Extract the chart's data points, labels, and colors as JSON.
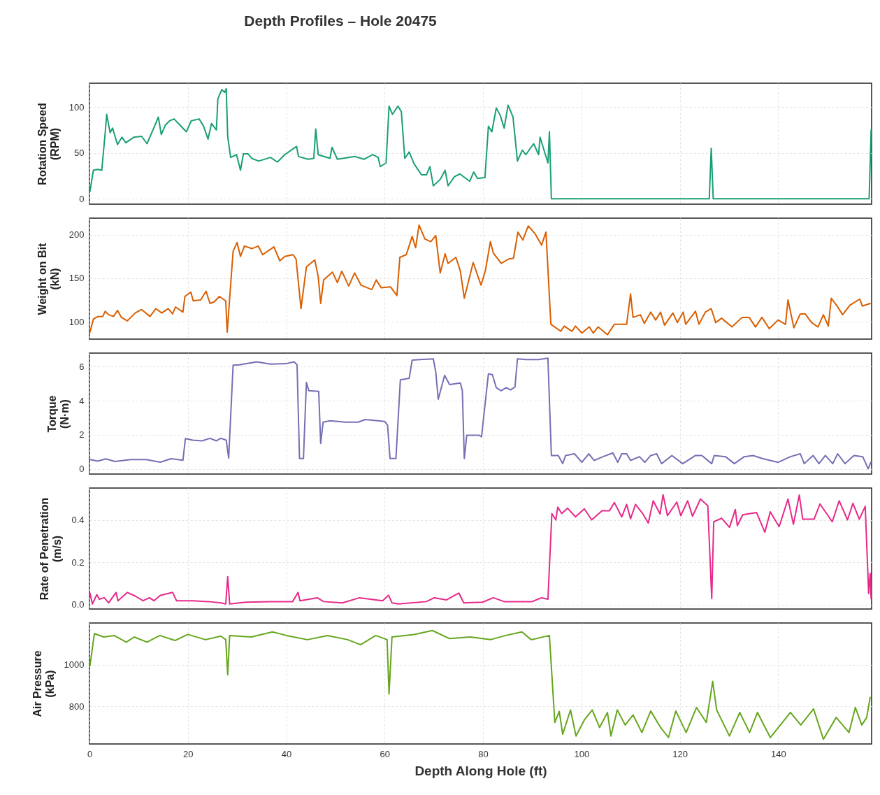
{
  "chart_data": [
    {
      "type": "line",
      "title": "Depth Profiles – Hole 20475",
      "ylabel": "Rotation Speed (RPM)",
      "xlim": [
        0,
        159
      ],
      "xticks": [
        0,
        20,
        40,
        60,
        80,
        100,
        120,
        140
      ],
      "ylim": [
        -6,
        126
      ],
      "yticks": [
        0,
        50,
        100
      ],
      "grid": true,
      "tick_labels": "y",
      "series": [
        {
          "color": "#1b9e77",
          "x": [
            0.1,
            0.8,
            1.7,
            2.5,
            3.2,
            3.5,
            4.2,
            4.7,
            5.7,
            6.6,
            7.4,
            9,
            10.6,
            11.7,
            12.9,
            14,
            14.6,
            15.4,
            16.3,
            17.2,
            19.7,
            20.7,
            22.3,
            23.2,
            24.1,
            24.8,
            25.8,
            26.1,
            26.9,
            27.5,
            27.8,
            28.1,
            28.7,
            29.9,
            30.7,
            31.3,
            32.2,
            33,
            34.4,
            36.8,
            38.2,
            39.7,
            42.1,
            42.5,
            44.4,
            45.6,
            46,
            46.5,
            48.9,
            49.3,
            50.4,
            54,
            55.8,
            57.6,
            58.7,
            59.1,
            60.3,
            60.9,
            61.6,
            62.7,
            63.4,
            64.1,
            65,
            66,
            67.5,
            68.5,
            69.2,
            69.9,
            71.3,
            72.3,
            72.9,
            74.2,
            75.3,
            77.3,
            78.1,
            78.9,
            80.4,
            81.1,
            81.8,
            82.7,
            83.5,
            84.3,
            85.1,
            86.1,
            87,
            88,
            88.7,
            90.3,
            91.3,
            91.6,
            93.2,
            93.5,
            93.9,
            126,
            126.4,
            126.8,
            158.5,
            158.9
          ],
          "values": [
            8,
            31,
            32,
            31,
            72,
            92,
            72,
            77,
            59,
            67,
            61,
            67,
            68,
            60,
            75,
            89,
            70,
            80,
            85,
            87,
            73,
            85,
            87,
            79,
            65,
            82,
            75,
            109,
            119,
            116,
            120,
            68,
            45,
            48,
            31,
            49,
            49,
            44,
            41,
            45,
            40,
            48,
            57,
            46,
            43,
            44,
            76,
            48,
            44,
            56,
            43,
            46,
            43,
            48,
            45,
            35,
            39,
            101,
            92,
            101,
            95,
            44,
            51,
            38,
            26,
            26,
            35,
            14,
            21,
            31,
            14,
            24,
            27,
            19,
            29,
            22,
            23,
            79,
            73,
            99,
            91,
            77,
            102,
            89,
            41,
            53,
            48,
            60,
            48,
            67,
            39,
            73,
            0,
            0,
            55,
            0,
            0,
            75
          ]
        }
      ]
    },
    {
      "type": "line",
      "ylabel": "Weight on Bit (kN)",
      "xlim": [
        0,
        159
      ],
      "xticks": [
        0,
        20,
        40,
        60,
        80,
        100,
        120,
        140
      ],
      "ylim": [
        80,
        219
      ],
      "yticks": [
        100,
        150,
        200
      ],
      "grid": true,
      "tick_labels": "y",
      "series": [
        {
          "color": "#d95f02",
          "x": [
            0.1,
            0.8,
            1.7,
            2.7,
            3.2,
            3.9,
            4.9,
            5.7,
            6.5,
            7.7,
            9.3,
            10.6,
            12.3,
            13.5,
            14.7,
            16,
            16.9,
            17.5,
            19,
            19.4,
            20.6,
            21.1,
            22.6,
            23.7,
            24.5,
            25.4,
            26.4,
            27.7,
            28,
            29.2,
            30,
            30.7,
            31.5,
            33,
            34.3,
            35.2,
            37.5,
            38.7,
            39.7,
            41.4,
            42,
            43,
            44.1,
            45.8,
            46.5,
            47,
            47.6,
            49.4,
            50.4,
            51.3,
            52.7,
            53.9,
            55.2,
            57.4,
            58.3,
            59.3,
            61.2,
            62.5,
            63.1,
            64.4,
            65.6,
            66.3,
            67,
            68.2,
            69.4,
            70.4,
            71.3,
            72.3,
            72.9,
            74.5,
            75.4,
            76.2,
            78,
            79.6,
            80.5,
            81.5,
            82.1,
            83.7,
            85.2,
            86.2,
            87.1,
            88.1,
            89.2,
            90.6,
            91.9,
            92.8,
            93.8,
            95.8,
            96.5,
            98.1,
            98.8,
            100.1,
            101.6,
            102.4,
            103.4,
            105.3,
            106.7,
            108,
            109.2,
            110,
            110.5,
            112,
            112.8,
            114.1,
            115.1,
            116.1,
            116.9,
            118.6,
            119.5,
            120.7,
            121.2,
            123.2,
            123.9,
            125.2,
            126.4,
            127.3,
            128.5,
            130.6,
            132.7,
            134.1,
            135.4,
            136.7,
            138.2,
            140,
            141.5,
            142,
            143.2,
            144.5,
            145.5,
            146.8,
            148.1,
            149.2,
            150.2,
            150.8,
            152.1,
            153.1,
            154.6,
            156.6,
            157.1,
            158.7
          ],
          "values": [
            88,
            103,
            106,
            106,
            112,
            108,
            106,
            113,
            105,
            101,
            110,
            114,
            106,
            115,
            110,
            115,
            109,
            117,
            111,
            129,
            134,
            124,
            125,
            135,
            121,
            123,
            129,
            124,
            88,
            181,
            191,
            175,
            187,
            184,
            187,
            177,
            186,
            170,
            175,
            177,
            172,
            115,
            163,
            171,
            152,
            121,
            148,
            157,
            145,
            158,
            141,
            156,
            142,
            137,
            148,
            139,
            140,
            130,
            174,
            177,
            198,
            185,
            211,
            195,
            192,
            199,
            156,
            178,
            167,
            174,
            158,
            127,
            168,
            142,
            159,
            192,
            179,
            167,
            172,
            173,
            203,
            194,
            210,
            201,
            188,
            203,
            97,
            89,
            95,
            89,
            95,
            87,
            94,
            87,
            94,
            85,
            97,
            97,
            97,
            132,
            105,
            108,
            98,
            111,
            102,
            111,
            96,
            110,
            99,
            111,
            97,
            112,
            97,
            111,
            115,
            99,
            104,
            94,
            105,
            105,
            94,
            105,
            92,
            102,
            97,
            125,
            93,
            109,
            109,
            99,
            94,
            108,
            95,
            127,
            117,
            108,
            119,
            126,
            118,
            121
          ]
        }
      ]
    },
    {
      "type": "line",
      "ylabel": "Torque (N·m)",
      "xlim": [
        0,
        159
      ],
      "xticks": [
        0,
        20,
        40,
        60,
        80,
        100,
        120,
        140
      ],
      "ylim": [
        -0.3,
        6.8
      ],
      "yticks": [
        0,
        2,
        4,
        6
      ],
      "grid": true,
      "tick_labels": "y",
      "series": [
        {
          "color": "#7570b3",
          "x": [
            0.1,
            1.7,
            3.3,
            5.2,
            8.4,
            11.5,
            14.4,
            16.6,
            19,
            19.5,
            21,
            22.9,
            24.5,
            25.8,
            26.7,
            27.8,
            28.3,
            29.2,
            30.5,
            34,
            36.8,
            40,
            41.6,
            42.2,
            42.7,
            43.5,
            44.1,
            44.6,
            46.6,
            47,
            47.5,
            48.9,
            52,
            54.6,
            56.1,
            60,
            60.6,
            61.1,
            62.3,
            63.2,
            65,
            65.6,
            67.2,
            69.9,
            70.4,
            70.9,
            72.2,
            73.2,
            75.4,
            75.8,
            76.2,
            76.7,
            79.2,
            79.7,
            81.1,
            81.9,
            82.7,
            83.7,
            84.7,
            85.6,
            86.5,
            87,
            88.7,
            91.3,
            93.2,
            93.9,
            95.3,
            96.2,
            96.8,
            98.6,
            100.1,
            101.5,
            102.6,
            104.4,
            106.4,
            107.4,
            108.2,
            109.2,
            110,
            111.8,
            112.9,
            114.1,
            115.3,
            116.3,
            118.4,
            120.6,
            123.2,
            124.5,
            126.5,
            127,
            129.3,
            131.1,
            133.1,
            134.9,
            136.9,
            140,
            142.5,
            144.5,
            145.3,
            147.1,
            148.3,
            149.6,
            151.1,
            152.1,
            153.6,
            155.4,
            157.2,
            158.3,
            158.9
          ],
          "values": [
            0.55,
            0.46,
            0.59,
            0.44,
            0.55,
            0.55,
            0.4,
            0.6,
            0.51,
            1.78,
            1.69,
            1.65,
            1.8,
            1.65,
            1.8,
            1.69,
            0.64,
            6.09,
            6.11,
            6.29,
            6.15,
            6.18,
            6.29,
            6.11,
            0.61,
            0.61,
            5.08,
            4.59,
            4.55,
            1.5,
            2.75,
            2.83,
            2.75,
            2.75,
            2.9,
            2.79,
            2.57,
            0.61,
            0.61,
            5.23,
            5.32,
            6.39,
            6.42,
            6.46,
            5.69,
            4.09,
            5.5,
            4.95,
            5.05,
            4.59,
            0.61,
            1.98,
            1.98,
            1.89,
            5.58,
            5.54,
            4.77,
            4.59,
            4.77,
            4.64,
            4.81,
            6.46,
            6.42,
            6.42,
            6.5,
            0.79,
            0.79,
            0.31,
            0.79,
            0.89,
            0.39,
            0.89,
            0.5,
            0.72,
            0.94,
            0.39,
            0.89,
            0.89,
            0.5,
            0.72,
            0.39,
            0.79,
            0.89,
            0.31,
            0.79,
            0.31,
            0.79,
            0.79,
            0.31,
            0.79,
            0.72,
            0.31,
            0.72,
            0.79,
            0.6,
            0.39,
            0.72,
            0.89,
            0.31,
            0.79,
            0.31,
            0.79,
            0.31,
            0.89,
            0.31,
            0.79,
            0.72,
            0.01,
            0.42
          ]
        }
      ]
    },
    {
      "type": "line",
      "ylabel": "Rate of Penetration (m/s)",
      "xlim": [
        0,
        159
      ],
      "xticks": [
        0,
        20,
        40,
        60,
        80,
        100,
        120,
        140
      ],
      "ylim": [
        -0.02,
        0.55
      ],
      "yticks": [
        {
          "value": 0,
          "label": "0.0"
        },
        {
          "value": 0.2,
          "label": "0.2"
        },
        {
          "value": 0.4,
          "label": "0.4"
        }
      ],
      "grid": true,
      "tick_labels": "y",
      "series": [
        {
          "color": "#e7298a",
          "x": [
            0.1,
            0.6,
            1.5,
            2,
            3,
            3.9,
            5.4,
            5.8,
            7.7,
            9.3,
            10.9,
            12.2,
            13.1,
            14.4,
            16.9,
            17.7,
            21,
            24.2,
            26.7,
            27.7,
            28.1,
            28.5,
            31.8,
            36.8,
            41.3,
            42.4,
            42.8,
            46.3,
            47.6,
            51.4,
            54.9,
            59.6,
            60.8,
            61.5,
            62.8,
            68.5,
            70.1,
            72.6,
            75.1,
            76.1,
            79.9,
            82.1,
            84.3,
            90,
            91.9,
            93.2,
            94,
            94.8,
            95.2,
            96,
            97.2,
            98.8,
            100.6,
            102.1,
            104.2,
            105.7,
            106.7,
            108.2,
            109.2,
            110,
            111,
            112.4,
            113.6,
            114.6,
            116,
            116.6,
            117.5,
            119.4,
            120.2,
            121.6,
            122.6,
            124.2,
            125.7,
            126.5,
            126.9,
            128.5,
            130.1,
            131.3,
            131.7,
            132.8,
            135.6,
            137.3,
            138.4,
            140.2,
            142,
            143.1,
            144.3,
            145,
            147.3,
            148.5,
            151,
            152.4,
            154.1,
            155.2,
            156.5,
            157.7,
            158.4,
            158.7,
            158.9
          ],
          "values": [
            0.055,
            0.004,
            0.048,
            0.026,
            0.033,
            0.009,
            0.058,
            0.019,
            0.058,
            0.041,
            0.019,
            0.033,
            0.019,
            0.044,
            0.058,
            0.019,
            0.019,
            0.015,
            0.009,
            0.004,
            0.132,
            0.004,
            0.012,
            0.015,
            0.015,
            0.058,
            0.019,
            0.033,
            0.015,
            0.009,
            0.033,
            0.019,
            0.045,
            0.009,
            0.004,
            0.015,
            0.033,
            0.023,
            0.055,
            0.009,
            0.012,
            0.033,
            0.015,
            0.015,
            0.033,
            0.026,
            0.43,
            0.4,
            0.46,
            0.43,
            0.455,
            0.414,
            0.452,
            0.4,
            0.443,
            0.443,
            0.482,
            0.414,
            0.473,
            0.405,
            0.473,
            0.432,
            0.385,
            0.49,
            0.428,
            0.519,
            0.42,
            0.484,
            0.42,
            0.49,
            0.417,
            0.498,
            0.467,
            0.029,
            0.391,
            0.408,
            0.365,
            0.449,
            0.373,
            0.424,
            0.435,
            0.342,
            0.438,
            0.368,
            0.498,
            0.379,
            0.517,
            0.403,
            0.403,
            0.475,
            0.391,
            0.49,
            0.4,
            0.478,
            0.403,
            0.464,
            0.053,
            0.148,
            0.029
          ]
        }
      ]
    },
    {
      "type": "line",
      "ylabel": "Air Pressure (kPa)",
      "xlabel": "Depth Along Hole (ft)",
      "xlim": [
        0,
        159
      ],
      "xticks": [
        0,
        20,
        40,
        60,
        80,
        100,
        120,
        140
      ],
      "ylim": [
        620,
        1200
      ],
      "yticks": [
        800,
        1000
      ],
      "grid": true,
      "series": [
        {
          "color": "#66a61e",
          "x": [
            0.1,
            1,
            2.9,
            5,
            7.5,
            9.1,
            11.7,
            14.3,
            17.4,
            20,
            23.6,
            26.7,
            27.7,
            28.1,
            28.5,
            32.9,
            37.2,
            40.1,
            44.3,
            48.4,
            52.5,
            55.1,
            58.2,
            60.5,
            60.9,
            61.5,
            66,
            69.7,
            73.2,
            77.4,
            81.5,
            84.6,
            87.9,
            89.8,
            93.5,
            94.6,
            95.5,
            96.2,
            97.8,
            98.9,
            100.6,
            102.2,
            103.7,
            105.3,
            106,
            107.3,
            108.9,
            110.5,
            112.3,
            114.1,
            116.1,
            117.7,
            119.2,
            121.3,
            123.4,
            125.4,
            126.7,
            127.5,
            130.1,
            132.2,
            134.2,
            135.8,
            138.4,
            142.5,
            144.6,
            147.2,
            149.2,
            151.8,
            154.4,
            155.7,
            157,
            158,
            158.7
          ],
          "values": [
            995,
            1149,
            1133,
            1140,
            1108,
            1133,
            1108,
            1140,
            1116,
            1145,
            1120,
            1137,
            1120,
            952,
            1140,
            1133,
            1157,
            1140,
            1120,
            1140,
            1120,
            1096,
            1140,
            1120,
            860,
            1133,
            1145,
            1164,
            1125,
            1133,
            1120,
            1140,
            1157,
            1120,
            1140,
            723,
            776,
            667,
            783,
            658,
            735,
            783,
            699,
            771,
            658,
            783,
            711,
            759,
            675,
            778,
            699,
            651,
            778,
            675,
            795,
            723,
            920,
            783,
            658,
            771,
            675,
            771,
            651,
            771,
            711,
            788,
            643,
            747,
            675,
            795,
            711,
            747,
            843
          ]
        }
      ]
    }
  ]
}
